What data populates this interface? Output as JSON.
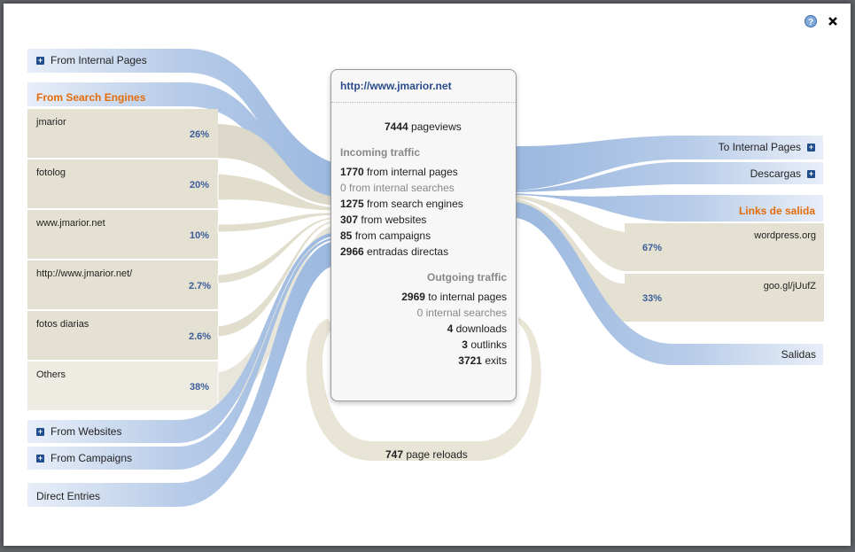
{
  "center": {
    "url": "http://www.jmarior.net",
    "pageviews_value": "7444",
    "pageviews_label": "pageviews",
    "incoming_header": "Incoming traffic",
    "incoming": [
      {
        "value": "1770",
        "label": "from internal pages"
      },
      {
        "value": "0",
        "label": "from internal searches"
      },
      {
        "value": "1275",
        "label": "from search engines"
      },
      {
        "value": "307",
        "label": "from websites"
      },
      {
        "value": "85",
        "label": "from campaigns"
      },
      {
        "value": "2966",
        "label": "entradas directas"
      }
    ],
    "outgoing_header": "Outgoing traffic",
    "outgoing": [
      {
        "value": "2969",
        "label": "to internal pages"
      },
      {
        "value": "0",
        "label": "internal searches"
      },
      {
        "value": "4",
        "label": "downloads"
      },
      {
        "value": "3",
        "label": "outlinks"
      },
      {
        "value": "3721",
        "label": "exits"
      }
    ]
  },
  "reloads": {
    "value": "747",
    "label": "page reloads"
  },
  "left": {
    "internal_pages": "From Internal Pages",
    "search_engines_header": "From Search Engines",
    "engines": [
      {
        "label": "jmarior",
        "pct": "26%"
      },
      {
        "label": "fotolog",
        "pct": "20%"
      },
      {
        "label": "www.jmarior.net",
        "pct": "10%"
      },
      {
        "label": "http://www.jmarior.net/",
        "pct": "2.7%"
      },
      {
        "label": "fotos diarias",
        "pct": "2.6%"
      },
      {
        "label": "Others",
        "pct": "38%"
      }
    ],
    "websites": "From Websites",
    "campaigns": "From Campaigns",
    "direct": "Direct Entries"
  },
  "right": {
    "internal_pages": "To Internal Pages",
    "downloads": "Descargas",
    "outlinks_header": "Links de salida",
    "outlinks": [
      {
        "label": "wordpress.org",
        "pct": "67%"
      },
      {
        "label": "goo.gl/jUufZ",
        "pct": "33%"
      }
    ],
    "exits": "Salidas"
  },
  "colors": {
    "blue_flow": "#a7c0e2",
    "beige_flow": "#e4e0d2",
    "accent_orange": "#e36c0a",
    "link_blue": "#2a4d8a"
  },
  "icons": {
    "help": "help-icon",
    "close": "close-icon"
  }
}
